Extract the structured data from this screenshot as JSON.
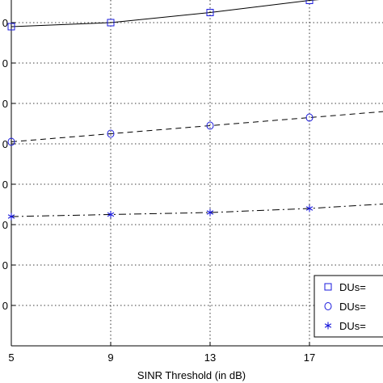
{
  "chart_data": {
    "type": "line",
    "xlabel": "SINR Threshold (in dB)",
    "ylabel": "",
    "x_ticks": [
      5,
      9,
      13,
      17
    ],
    "xlim": [
      5,
      21
    ],
    "ylim": [
      0,
      9
    ],
    "y_grid_values": [
      1,
      2,
      3,
      4,
      5,
      6,
      7,
      8,
      9
    ],
    "y_tick_labels": [
      "0",
      "0",
      "0",
      "0",
      "0",
      "0",
      "0",
      "0",
      "0"
    ],
    "x": [
      5,
      9,
      13,
      17,
      21
    ],
    "grid": true,
    "legend_position": "bottom-right",
    "series": [
      {
        "name": "DUs=",
        "marker": "square",
        "line_style": "solid",
        "values": [
          7.9,
          8.0,
          8.25,
          8.55,
          8.75
        ]
      },
      {
        "name": "DUs=",
        "marker": "circle",
        "line_style": "dashed",
        "values": [
          5.05,
          5.25,
          5.45,
          5.65,
          5.85
        ]
      },
      {
        "name": "DUs=",
        "marker": "asterisk",
        "line_style": "dashdot",
        "values": [
          3.2,
          3.25,
          3.3,
          3.4,
          3.55
        ]
      }
    ],
    "colors": {
      "line": "#000000",
      "marker": "#1a1adc",
      "grid": "#000000"
    }
  }
}
